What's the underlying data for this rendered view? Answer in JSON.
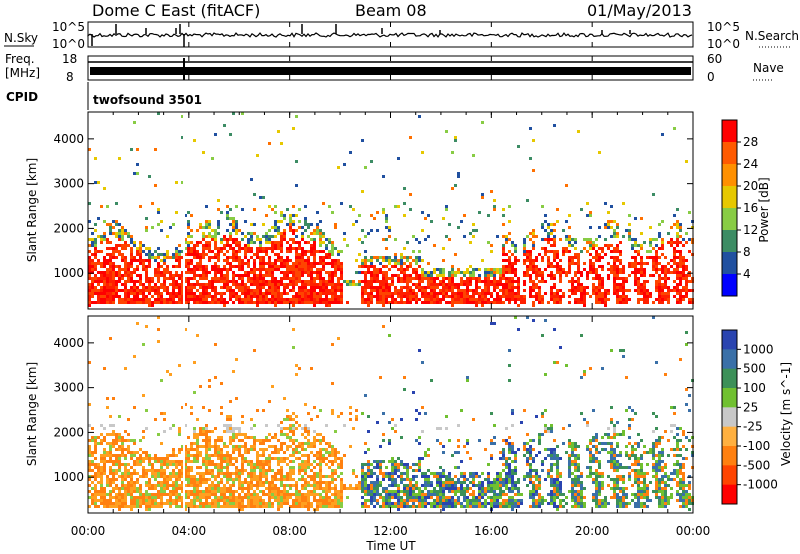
{
  "header": {
    "title": "Dome C East (fitACF)",
    "beam": "Beam 08",
    "date": "01/May/2013"
  },
  "status_panel": {
    "nsky_label": "N.Sky",
    "nsearch_label": "N.Search",
    "nsky_ticks": [
      "10^5",
      "10^0"
    ],
    "nsearch_ticks": [
      "10^5",
      "10^0"
    ],
    "freq_label_1": "Freq.",
    "freq_label_2": "[MHz]",
    "freq_ticks": [
      "18",
      "8"
    ],
    "nave_label": "Nave",
    "nave_ticks": [
      "60",
      "0"
    ],
    "cpid_label": "CPID",
    "cpid_value": "twofsound 3501"
  },
  "chart_data": [
    {
      "type": "heatmap",
      "name": "power",
      "ylabel": "Slant Range [km]",
      "ylim": [
        200,
        4600
      ],
      "yticks": [
        1000,
        2000,
        3000,
        4000
      ],
      "colorbar_label": "Power [dB]",
      "colorbar_ticks": [
        "28",
        "24",
        "20",
        "16",
        "12",
        "8",
        "4"
      ],
      "colorbar_colors": [
        "#ff0000",
        "#ff5a00",
        "#ff9000",
        "#e6c800",
        "#88cc44",
        "#3c8c64",
        "#2050a0",
        "#0000ff"
      ]
    },
    {
      "type": "heatmap",
      "name": "velocity",
      "ylabel": "Slant Range [km]",
      "ylim": [
        200,
        4600
      ],
      "yticks": [
        1000,
        2000,
        3000,
        4000
      ],
      "xlabel": "Time UT",
      "xticks": [
        "00:00",
        "04:00",
        "08:00",
        "12:00",
        "16:00",
        "20:00",
        "00:00"
      ],
      "colorbar_label": "Velocity [m s^-1]",
      "colorbar_ticks": [
        "1000",
        "500",
        "100",
        "25",
        "-25",
        "-100",
        "-500",
        "-1000"
      ],
      "colorbar_colors": [
        "#2a44b0",
        "#3a70a8",
        "#3c9058",
        "#70c030",
        "#c8c8c8",
        "#ffb040",
        "#ff8010",
        "#ff4400",
        "#ff0000"
      ]
    }
  ]
}
